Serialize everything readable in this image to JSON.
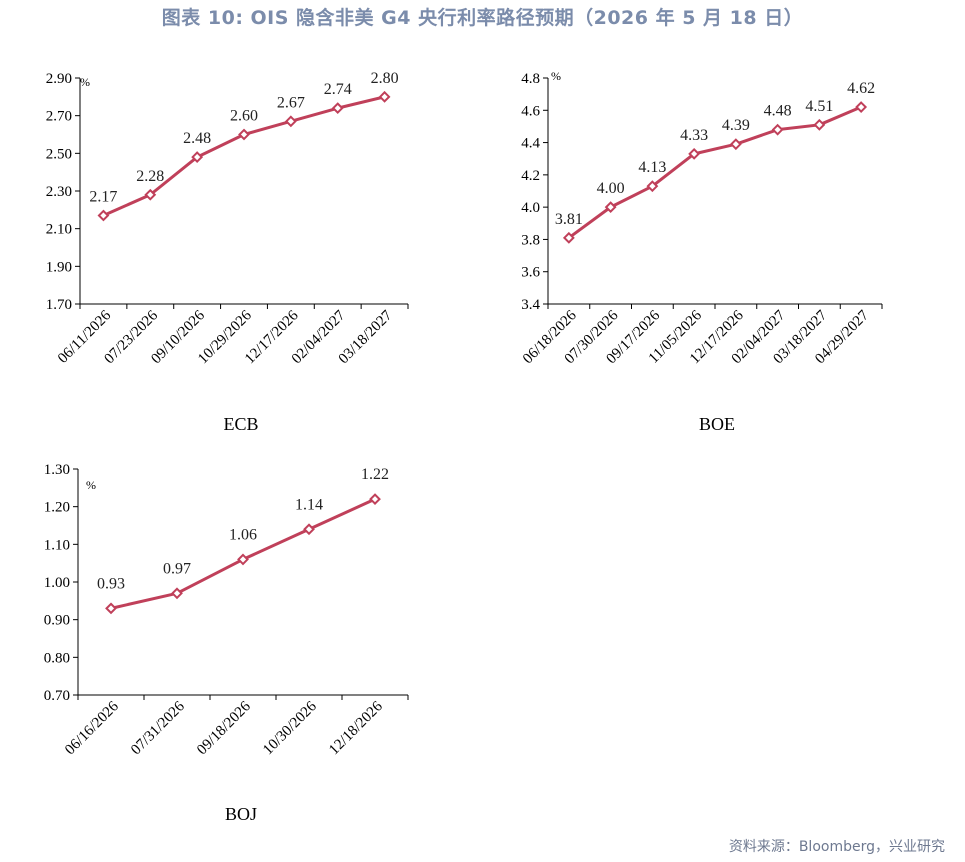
{
  "figure": {
    "title": "图表 10: OIS 隐含非美 G4 央行利率路径预期（2026 年 5 月 18 日）",
    "source": "资料来源：Bloomberg，兴业研究"
  },
  "colors": {
    "series": "#c0405a",
    "axis": "#000000",
    "title": "#7b8cab"
  },
  "chart_data": [
    {
      "type": "line",
      "title": "ECB",
      "unit": "%",
      "categories": [
        "06/11/2026",
        "07/23/2026",
        "09/10/2026",
        "10/29/2026",
        "12/17/2026",
        "02/04/2027",
        "03/18/2027"
      ],
      "values": [
        2.17,
        2.28,
        2.48,
        2.6,
        2.67,
        2.74,
        2.8
      ],
      "value_labels": [
        "2.17",
        "2.28",
        "2.48",
        "2.60",
        "2.67",
        "2.74",
        "2.80"
      ],
      "yticks": [
        "1.70",
        "1.90",
        "2.10",
        "2.30",
        "2.50",
        "2.70",
        "2.90"
      ],
      "ylim": [
        1.7,
        2.9
      ],
      "grid": false,
      "legend": "none"
    },
    {
      "type": "line",
      "title": "BOE",
      "unit": "%",
      "categories": [
        "06/18/2026",
        "07/30/2026",
        "09/17/2026",
        "11/05/2026",
        "12/17/2026",
        "02/04/2027",
        "03/18/2027",
        "04/29/2027"
      ],
      "values": [
        3.81,
        4.0,
        4.13,
        4.33,
        4.39,
        4.48,
        4.51,
        4.62
      ],
      "value_labels": [
        "3.81",
        "4.00",
        "4.13",
        "4.33",
        "4.39",
        "4.48",
        "4.51",
        "4.62"
      ],
      "yticks": [
        "3.4",
        "3.6",
        "3.8",
        "4.0",
        "4.2",
        "4.4",
        "4.6",
        "4.8"
      ],
      "ylim": [
        3.4,
        4.8
      ],
      "grid": false,
      "legend": "none"
    },
    {
      "type": "line",
      "title": "BOJ",
      "unit": "%",
      "categories": [
        "06/16/2026",
        "07/31/2026",
        "09/18/2026",
        "10/30/2026",
        "12/18/2026"
      ],
      "values": [
        0.93,
        0.97,
        1.06,
        1.14,
        1.22
      ],
      "value_labels": [
        "0.93",
        "0.97",
        "1.06",
        "1.14",
        "1.22"
      ],
      "yticks": [
        "0.70",
        "0.80",
        "0.90",
        "1.00",
        "1.10",
        "1.20",
        "1.30"
      ],
      "ylim": [
        0.7,
        1.3
      ],
      "grid": false,
      "legend": "none"
    }
  ]
}
